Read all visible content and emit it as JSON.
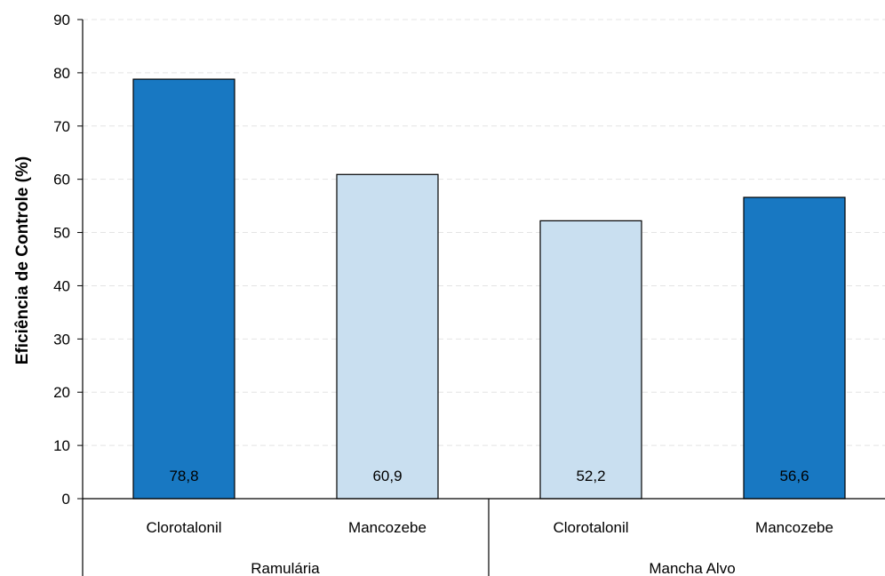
{
  "chart_data": {
    "type": "bar",
    "title": "",
    "xlabel": "",
    "ylabel": "Eficiência de Controle (%)",
    "ylim": [
      0,
      90
    ],
    "yticks": [
      0,
      10,
      20,
      30,
      40,
      50,
      60,
      70,
      80,
      90
    ],
    "grid": true,
    "groups": [
      {
        "name": "Ramulária",
        "bars": [
          {
            "category": "Clorotalonil",
            "value": 78.8,
            "label": "78,8",
            "color": "#1878c2"
          },
          {
            "category": "Mancozebe",
            "value": 60.9,
            "label": "60,9",
            "color": "#c9dff0"
          }
        ]
      },
      {
        "name": "Mancha Alvo",
        "bars": [
          {
            "category": "Clorotalonil",
            "value": 52.2,
            "label": "52,2",
            "color": "#c9dff0"
          },
          {
            "category": "Mancozebe",
            "value": 56.6,
            "label": "56,6",
            "color": "#1878c2"
          }
        ]
      }
    ]
  },
  "colors": {
    "dark_bar": "#1878c2",
    "light_bar": "#c9dff0",
    "gridline": "#e4e4e4",
    "axis": "#000000"
  }
}
